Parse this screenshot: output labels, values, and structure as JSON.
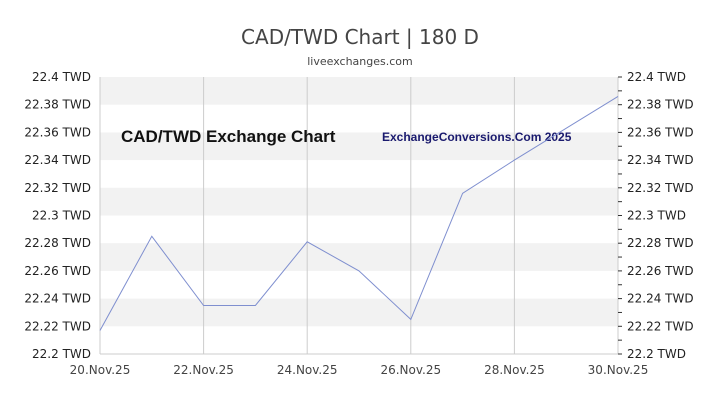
{
  "header": {
    "title": "CAD/TWD Chart | 180 D",
    "subtitle": "liveexchanges.com"
  },
  "watermarks": {
    "left": "CAD/TWD Exchange Chart",
    "right": "ExchangeConversions.Com 2025"
  },
  "colors": {
    "line": "#7f8fcf",
    "band": "#f2f2f2",
    "grid": "#cccccc",
    "text": "#444444"
  },
  "chart_data": {
    "type": "line",
    "title": "CAD/TWD Chart | 180 D",
    "subtitle": "liveexchanges.com",
    "xlabel": "",
    "ylabel": "",
    "ylim": [
      22.2,
      22.4
    ],
    "y_ticks": [
      "22.4 TWD",
      "22.38 TWD",
      "22.36 TWD",
      "22.34 TWD",
      "22.32 TWD",
      "22.3 TWD",
      "22.28 TWD",
      "22.26 TWD",
      "22.24 TWD",
      "22.22 TWD",
      "22.2 TWD"
    ],
    "x_ticks": [
      "20.Nov.25",
      "22.Nov.25",
      "24.Nov.25",
      "26.Nov.25",
      "28.Nov.25",
      "30.Nov.25"
    ],
    "grid": true,
    "legend": "none",
    "annotations": [
      "CAD/TWD Exchange Chart",
      "ExchangeConversions.Com 2025"
    ],
    "series": [
      {
        "name": "CAD/TWD",
        "x": [
          "20.Nov.25",
          "21.Nov.25",
          "22.Nov.25",
          "23.Nov.25",
          "24.Nov.25",
          "25.Nov.25",
          "26.Nov.25",
          "27.Nov.25",
          "28.Nov.25",
          "30.Nov.25"
        ],
        "day_index": [
          0,
          1,
          2,
          3,
          4,
          5,
          6,
          7,
          8,
          10
        ],
        "values": [
          22.217,
          22.285,
          22.235,
          22.235,
          22.281,
          22.26,
          22.225,
          22.316,
          22.34,
          22.386
        ]
      }
    ]
  }
}
